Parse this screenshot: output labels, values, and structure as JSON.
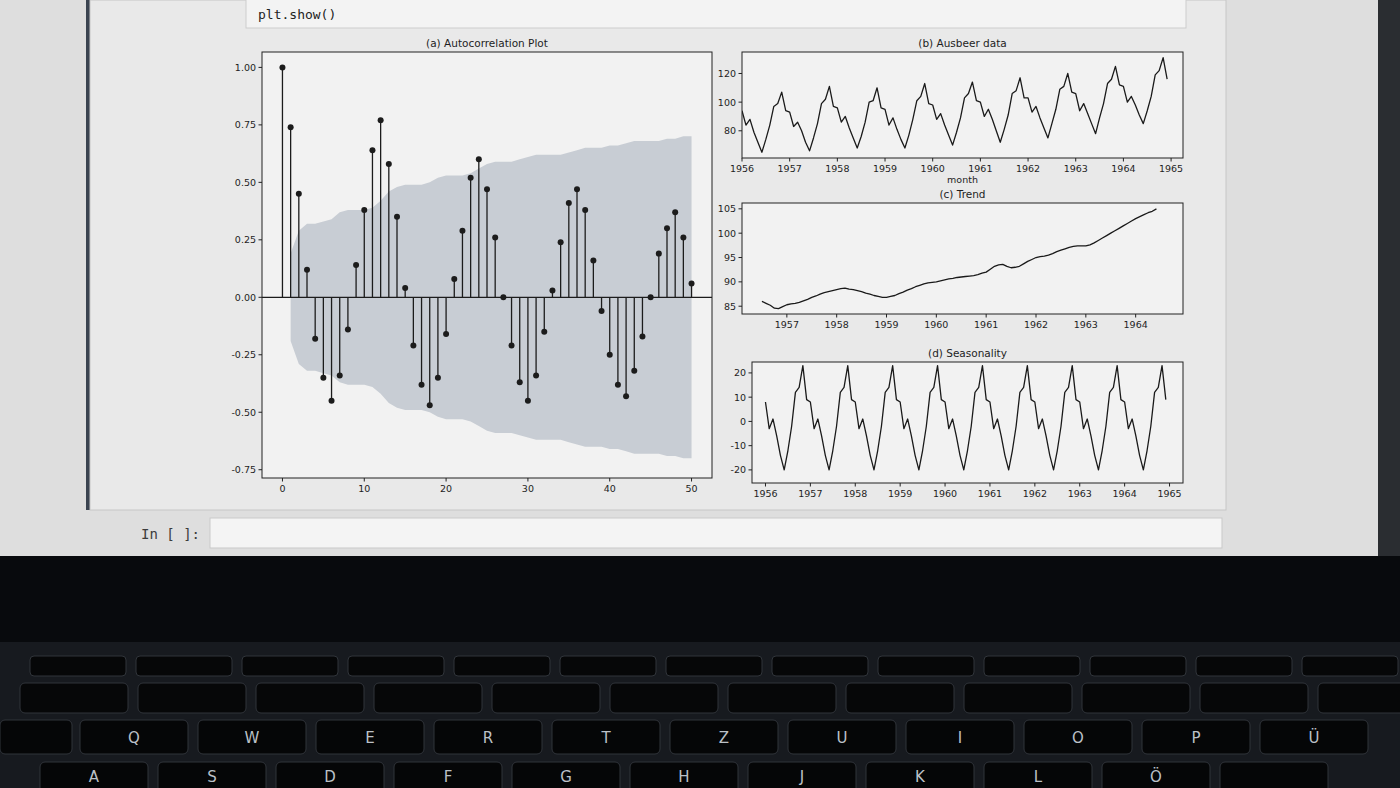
{
  "chart_data": [
    {
      "type": "stem",
      "title": "(a) Autocorrelation Plot",
      "color": "#1c1c1c",
      "marker": "circle",
      "x": [
        0,
        1,
        2,
        3,
        4,
        5,
        6,
        7,
        8,
        9,
        10,
        11,
        12,
        13,
        14,
        15,
        16,
        17,
        18,
        19,
        20,
        21,
        22,
        23,
        24,
        25,
        26,
        27,
        28,
        29,
        30,
        31,
        32,
        33,
        34,
        35,
        36,
        37,
        38,
        39,
        40,
        41,
        42,
        43,
        44,
        45,
        46,
        47,
        48,
        49,
        50
      ],
      "values": [
        1.0,
        0.74,
        0.45,
        0.12,
        -0.18,
        -0.35,
        -0.45,
        -0.34,
        -0.14,
        0.14,
        0.38,
        0.64,
        0.77,
        0.58,
        0.35,
        0.04,
        -0.21,
        -0.38,
        -0.47,
        -0.35,
        -0.16,
        0.08,
        0.29,
        0.52,
        0.6,
        0.47,
        0.26,
        0.0,
        -0.21,
        -0.37,
        -0.45,
        -0.34,
        -0.15,
        0.03,
        0.24,
        0.41,
        0.47,
        0.38,
        0.16,
        -0.06,
        -0.25,
        -0.38,
        -0.43,
        -0.32,
        -0.17,
        0.0,
        0.19,
        0.3,
        0.37,
        0.26,
        0.06
      ],
      "confint": [
        null,
        0.19,
        0.29,
        0.32,
        0.32,
        0.33,
        0.34,
        0.37,
        0.38,
        0.38,
        0.38,
        0.39,
        0.42,
        0.46,
        0.48,
        0.49,
        0.49,
        0.49,
        0.5,
        0.52,
        0.53,
        0.53,
        0.53,
        0.54,
        0.56,
        0.58,
        0.59,
        0.59,
        0.59,
        0.6,
        0.61,
        0.62,
        0.62,
        0.62,
        0.62,
        0.63,
        0.64,
        0.65,
        0.65,
        0.65,
        0.66,
        0.66,
        0.67,
        0.68,
        0.68,
        0.68,
        0.68,
        0.69,
        0.69,
        0.7,
        0.7
      ],
      "xlim": [
        -2.5,
        52.5
      ],
      "ylim": [
        -0.786,
        1.067
      ],
      "xticks": [
        0,
        10,
        20,
        30,
        40,
        50
      ],
      "yticks": [
        -0.75,
        {
          "value": -0.5,
          "label": "-0.50"
        },
        -0.25,
        {
          "value": 0,
          "label": "0.00"
        },
        0.25,
        {
          "value": 0.5,
          "label": "0.50"
        },
        0.75,
        {
          "value": 1,
          "label": "1.00"
        }
      ]
    },
    {
      "type": "line",
      "title": "(b) Ausbeer data",
      "x_label": "month",
      "color": "#1a1a1a",
      "x": [
        1956,
        1956.083,
        1956.167,
        1956.25,
        1956.333,
        1956.417,
        1956.5,
        1956.583,
        1956.667,
        1956.75,
        1956.833,
        1956.917,
        1957,
        1957.083,
        1957.167,
        1957.25,
        1957.333,
        1957.417,
        1957.5,
        1957.583,
        1957.667,
        1957.75,
        1957.833,
        1957.917,
        1958,
        1958.083,
        1958.167,
        1958.25,
        1958.333,
        1958.417,
        1958.5,
        1958.583,
        1958.667,
        1958.75,
        1958.833,
        1958.917,
        1959,
        1959.083,
        1959.167,
        1959.25,
        1959.333,
        1959.417,
        1959.5,
        1959.583,
        1959.667,
        1959.75,
        1959.833,
        1959.917,
        1960,
        1960.083,
        1960.167,
        1960.25,
        1960.333,
        1960.417,
        1960.5,
        1960.583,
        1960.667,
        1960.75,
        1960.833,
        1960.917,
        1961,
        1961.083,
        1961.167,
        1961.25,
        1961.333,
        1961.417,
        1961.5,
        1961.583,
        1961.667,
        1961.75,
        1961.833,
        1961.917,
        1962,
        1962.083,
        1962.167,
        1962.25,
        1962.333,
        1962.417,
        1962.5,
        1962.583,
        1962.667,
        1962.75,
        1962.833,
        1962.917,
        1963,
        1963.083,
        1963.167,
        1963.25,
        1963.333,
        1963.417,
        1963.5,
        1963.583,
        1963.667,
        1963.75,
        1963.833,
        1963.917,
        1964,
        1964.083,
        1964.167,
        1964.25,
        1964.333,
        1964.417,
        1964.5,
        1964.583,
        1964.667,
        1964.75,
        1964.833,
        1964.917
      ],
      "values": [
        94,
        84,
        88,
        79,
        72,
        65,
        74,
        84,
        97,
        99,
        107,
        94,
        93,
        83,
        86,
        80,
        72,
        66,
        75,
        85,
        99,
        102,
        111,
        97,
        96,
        86,
        90,
        82,
        75,
        68,
        76,
        86,
        100,
        101,
        110,
        96,
        95,
        84,
        89,
        81,
        74,
        68,
        77,
        88,
        101,
        104,
        113,
        99,
        98,
        88,
        92,
        84,
        77,
        70,
        79,
        89,
        103,
        106,
        114,
        101,
        100,
        90,
        95,
        88,
        80,
        72,
        81,
        91,
        106,
        108,
        117,
        103,
        103,
        93,
        97,
        89,
        82,
        75,
        85,
        95,
        109,
        111,
        120,
        107,
        106,
        94,
        99,
        92,
        85,
        78,
        89,
        99,
        113,
        116,
        125,
        112,
        111,
        100,
        104,
        98,
        91,
        85,
        94,
        104,
        119,
        122,
        131,
        116
      ],
      "xlim": [
        1956,
        1965.25
      ],
      "ylim": [
        61,
        135
      ],
      "xticks": [
        1956,
        1957,
        1958,
        1959,
        1960,
        1961,
        1962,
        1963,
        1964,
        1965
      ],
      "yticks": [
        80,
        100,
        120
      ]
    },
    {
      "type": "line",
      "title": "(c) Trend",
      "color": "#1a1a1a",
      "x": [
        1956,
        1956.083,
        1956.167,
        1956.25,
        1956.333,
        1956.417,
        1956.5,
        1956.583,
        1956.667,
        1956.75,
        1956.833,
        1956.917,
        1957,
        1957.083,
        1957.167,
        1957.25,
        1957.333,
        1957.417,
        1957.5,
        1957.583,
        1957.667,
        1957.75,
        1957.833,
        1957.917,
        1958,
        1958.083,
        1958.167,
        1958.25,
        1958.333,
        1958.417,
        1958.5,
        1958.583,
        1958.667,
        1958.75,
        1958.833,
        1958.917,
        1959,
        1959.083,
        1959.167,
        1959.25,
        1959.333,
        1959.417,
        1959.5,
        1959.583,
        1959.667,
        1959.75,
        1959.833,
        1959.917,
        1960,
        1960.083,
        1960.167,
        1960.25,
        1960.333,
        1960.417,
        1960.5,
        1960.583,
        1960.667,
        1960.75,
        1960.833,
        1960.917,
        1961,
        1961.083,
        1961.167,
        1961.25,
        1961.333,
        1961.417,
        1961.5,
        1961.583,
        1961.667,
        1961.75,
        1961.833,
        1961.917,
        1962,
        1962.083,
        1962.167,
        1962.25,
        1962.333,
        1962.417,
        1962.5,
        1962.583,
        1962.667,
        1962.75,
        1962.833,
        1962.917,
        1963,
        1963.083,
        1963.167,
        1963.25,
        1963.333,
        1963.417,
        1963.5,
        1963.583,
        1963.667,
        1963.75,
        1963.833,
        1963.917,
        1964,
        1964.083,
        1964.167,
        1964.25,
        1964.333,
        1964.417,
        1964.5,
        1964.583,
        1964.667,
        1964.75,
        1964.833,
        1964.917
      ],
      "values": [
        null,
        null,
        null,
        null,
        null,
        null,
        86.0,
        85.6,
        85.2,
        84.6,
        84.5,
        84.9,
        85.3,
        85.5,
        85.6,
        85.8,
        86.1,
        86.4,
        86.8,
        87.1,
        87.5,
        87.8,
        88.0,
        88.2,
        88.4,
        88.6,
        88.7,
        88.5,
        88.4,
        88.2,
        88.0,
        87.7,
        87.5,
        87.2,
        87.0,
        86.8,
        86.8,
        87.0,
        87.2,
        87.6,
        87.9,
        88.3,
        88.6,
        89.0,
        89.3,
        89.6,
        89.8,
        89.9,
        90.0,
        90.2,
        90.4,
        90.6,
        90.7,
        90.9,
        91.0,
        91.1,
        91.2,
        91.3,
        91.5,
        91.8,
        92.0,
        92.6,
        93.2,
        93.5,
        93.6,
        93.2,
        92.9,
        93.0,
        93.2,
        93.7,
        94.2,
        94.6,
        95.0,
        95.2,
        95.3,
        95.5,
        95.8,
        96.2,
        96.5,
        96.8,
        97.1,
        97.3,
        97.4,
        97.4,
        97.4,
        97.6,
        98.0,
        98.5,
        99.0,
        99.5,
        100.0,
        100.5,
        101.0,
        101.5,
        102.0,
        102.5,
        103.0,
        103.4,
        103.8,
        104.2,
        104.5,
        105.0,
        null,
        null,
        null,
        null,
        null,
        null
      ],
      "xlim": [
        1956.1,
        1964.95
      ],
      "ylim": [
        83.4,
        106.2
      ],
      "xticks": [
        1957,
        1958,
        1959,
        1960,
        1961,
        1962,
        1963,
        1964
      ],
      "yticks": [
        85,
        90,
        95,
        100,
        105
      ]
    },
    {
      "type": "line",
      "title": "(d) Seasonality",
      "color": "#1a1a1a",
      "x": [
        1956,
        1956.083,
        1956.167,
        1956.25,
        1956.333,
        1956.417,
        1956.5,
        1956.583,
        1956.667,
        1956.75,
        1956.833,
        1956.917,
        1957,
        1957.083,
        1957.167,
        1957.25,
        1957.333,
        1957.417,
        1957.5,
        1957.583,
        1957.667,
        1957.75,
        1957.833,
        1957.917,
        1958,
        1958.083,
        1958.167,
        1958.25,
        1958.333,
        1958.417,
        1958.5,
        1958.583,
        1958.667,
        1958.75,
        1958.833,
        1958.917,
        1959,
        1959.083,
        1959.167,
        1959.25,
        1959.333,
        1959.417,
        1959.5,
        1959.583,
        1959.667,
        1959.75,
        1959.833,
        1959.917,
        1960,
        1960.083,
        1960.167,
        1960.25,
        1960.333,
        1960.417,
        1960.5,
        1960.583,
        1960.667,
        1960.75,
        1960.833,
        1960.917,
        1961,
        1961.083,
        1961.167,
        1961.25,
        1961.333,
        1961.417,
        1961.5,
        1961.583,
        1961.667,
        1961.75,
        1961.833,
        1961.917,
        1962,
        1962.083,
        1962.167,
        1962.25,
        1962.333,
        1962.417,
        1962.5,
        1962.583,
        1962.667,
        1962.75,
        1962.833,
        1962.917,
        1963,
        1963.083,
        1963.167,
        1963.25,
        1963.333,
        1963.417,
        1963.5,
        1963.583,
        1963.667,
        1963.75,
        1963.833,
        1963.917,
        1964,
        1964.083,
        1964.167,
        1964.25,
        1964.333,
        1964.417,
        1964.5,
        1964.583,
        1964.667,
        1964.75,
        1964.833,
        1964.917
      ],
      "values": [
        8,
        -3,
        1,
        -6,
        -14,
        -20,
        -12,
        -2,
        12,
        14,
        23,
        9,
        8,
        -3,
        1,
        -6,
        -14,
        -20,
        -12,
        -2,
        12,
        14,
        23,
        9,
        8,
        -3,
        1,
        -6,
        -14,
        -20,
        -12,
        -2,
        12,
        14,
        23,
        9,
        8,
        -3,
        1,
        -6,
        -14,
        -20,
        -12,
        -2,
        12,
        14,
        23,
        9,
        8,
        -3,
        1,
        -6,
        -14,
        -20,
        -12,
        -2,
        12,
        14,
        23,
        9,
        8,
        -3,
        1,
        -6,
        -14,
        -20,
        -12,
        -2,
        12,
        14,
        23,
        9,
        8,
        -3,
        1,
        -6,
        -14,
        -20,
        -12,
        -2,
        12,
        14,
        23,
        9,
        8,
        -3,
        1,
        -6,
        -14,
        -20,
        -12,
        -2,
        12,
        14,
        23,
        9,
        8,
        -3,
        1,
        -6,
        -14,
        -20,
        -12,
        -2,
        12,
        14,
        23,
        9
      ],
      "xlim": [
        1955.7,
        1965.3
      ],
      "ylim": [
        -25.4,
        24.5
      ],
      "xticks": [
        1956,
        1957,
        1958,
        1959,
        1960,
        1961,
        1962,
        1963,
        1964,
        1965
      ],
      "yticks": [
        -20,
        -10,
        0,
        10,
        20
      ]
    }
  ],
  "notebook": {
    "code": "plt.show()",
    "prompt": "In [ ]:"
  },
  "keyboard": {
    "rows": [
      [
        "Q",
        "W",
        "E",
        "R",
        "T",
        "Z",
        "U",
        "I",
        "O",
        "P",
        "Ü"
      ],
      [
        "A",
        "S",
        "D",
        "F",
        "G",
        "H",
        "J",
        "K",
        "L",
        "Ö"
      ]
    ]
  }
}
